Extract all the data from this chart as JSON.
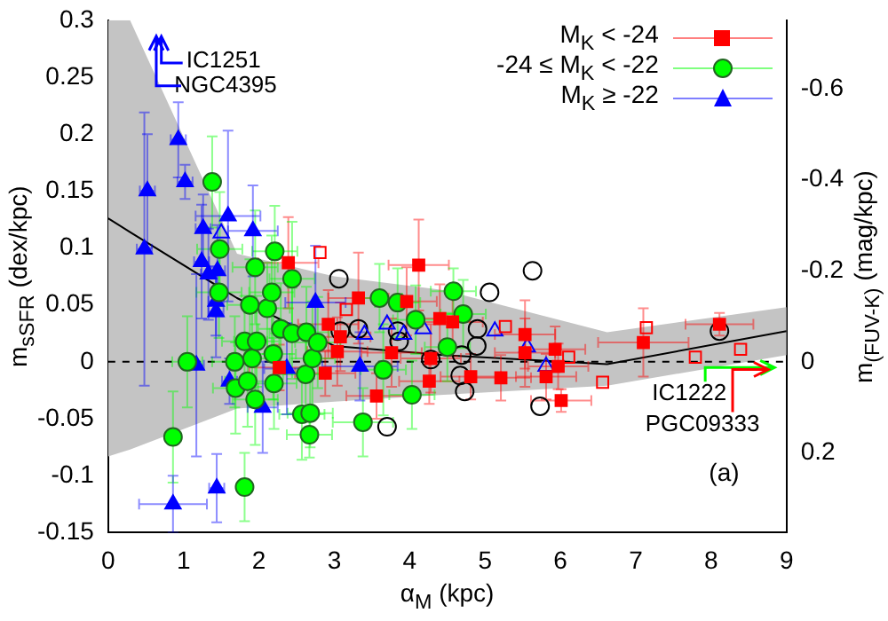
{
  "chart_data": {
    "type": "scatter",
    "xlabel": "α$_{M}$ (kpc)",
    "ylabel": "m$_{sSFR}$ (dex/kpc)",
    "y2label": "m$_{(FUV-K)}$ (mag/kpc)",
    "xlim": [
      0,
      9
    ],
    "xticks": [
      0,
      1,
      2,
      3,
      4,
      5,
      6,
      7,
      8,
      9
    ],
    "ylim": [
      -0.15,
      0.3
    ],
    "yticks": [
      -0.15,
      -0.1,
      -0.05,
      0,
      0.05,
      0.1,
      0.15,
      0.2,
      0.25,
      0.3
    ],
    "y2lim": [
      0.375,
      -0.75
    ],
    "y2ticks": [
      -0.6,
      -0.4,
      -0.2,
      0,
      0.2
    ],
    "grid": false,
    "legend": "top right",
    "ref_lines": [
      {
        "axis": "y",
        "value": 0,
        "line_style": "dashed",
        "color": "#000000"
      }
    ],
    "annotations": [
      "IC1251",
      "NGC4395",
      {
        "text": "IC1222",
        "x": 8.84,
        "y": -0.005
      },
      "PGC09333",
      "(a)"
    ],
    "series": [
      {
        "name": "M$_{K}$ < -24",
        "color": "#ff0000",
        "marker": "square",
        "x": [
          2.27,
          2.39,
          2.88,
          2.92,
          3.04,
          3.08,
          3.32,
          3.56,
          3.76,
          3.96,
          4.12,
          4.26,
          4.28,
          4.4,
          4.57,
          4.81,
          5.21,
          5.53,
          5.53,
          5.81,
          5.93,
          5.97,
          6.01,
          7.1,
          8.11
        ],
        "values": [
          -0.005,
          0.087,
          -0.01,
          0.033,
          0.009,
          0.022,
          0.056,
          -0.03,
          0.008,
          0.053,
          0.085,
          -0.017,
          0.003,
          0.038,
          0.035,
          -0.013,
          -0.014,
          0.024,
          0.008,
          -0.013,
          0.011,
          -0.004,
          -0.034,
          0.017,
          0.033
        ],
        "errors": [
          0.02,
          0.04,
          0.02,
          0.03,
          0.03,
          0.03,
          0.04,
          0.02,
          0.03,
          0.03,
          0.04,
          0.02,
          0.03,
          0.03,
          0.03,
          0.02,
          0.02,
          0.03,
          0.03,
          0.02,
          0.02,
          0.02,
          0.01,
          0.03,
          0.01
        ],
        "xerrors": [
          0.4,
          0.4,
          0.4,
          0.4,
          0.4,
          0.4,
          0.4,
          0.4,
          0.4,
          0.4,
          0.4,
          0.4,
          0.4,
          0.4,
          0.4,
          0.4,
          0.4,
          0.4,
          0.4,
          0.4,
          0.4,
          0.4,
          0.4,
          0.6,
          0.45
        ]
      },
      {
        "name": "-24 ≤ M$_{K}$ < -22",
        "color": "#00ff00",
        "marker": "circle",
        "x": [
          0.86,
          1.05,
          1.38,
          1.47,
          1.48,
          1.68,
          1.69,
          1.81,
          1.81,
          1.85,
          1.88,
          1.91,
          1.95,
          1.95,
          1.97,
          2.11,
          2.17,
          2.19,
          2.2,
          2.21,
          2.29,
          2.44,
          2.44,
          2.57,
          2.62,
          2.63,
          2.67,
          2.68,
          2.71,
          2.78,
          3.38,
          3.6,
          3.65,
          3.84,
          4.03,
          4.08,
          4.5,
          4.58,
          4.71
        ],
        "values": [
          -0.066,
          0.0,
          0.158,
          0.061,
          0.099,
          0.0,
          -0.023,
          0.018,
          -0.11,
          -0.017,
          0.05,
          0.003,
          0.083,
          -0.033,
          0.018,
          0.047,
          0.061,
          0.007,
          -0.019,
          0.097,
          0.029,
          0.073,
          0.025,
          -0.046,
          -0.011,
          0.026,
          -0.064,
          -0.045,
          0.003,
          0.017,
          -0.053,
          0.056,
          -0.007,
          0.052,
          -0.029,
          0.037,
          0.013,
          0.062,
          0.042
        ],
        "errors": [
          0.04,
          0.04,
          0.04,
          0.04,
          0.05,
          0.04,
          0.04,
          0.04,
          0.03,
          0.04,
          0.04,
          0.04,
          0.05,
          0.04,
          0.04,
          0.04,
          0.05,
          0.04,
          0.04,
          0.04,
          0.04,
          0.05,
          0.04,
          0.04,
          0.04,
          0.04,
          0.02,
          0.03,
          0.05,
          0.04,
          0.03,
          0.03,
          0.04,
          0.03,
          0.03,
          0.03,
          0.03,
          0.02,
          0.03
        ],
        "xerrors": [
          0.1,
          0.2,
          0.1,
          0.3,
          0.3,
          0.3,
          0.3,
          0.3,
          0.1,
          0.3,
          0.3,
          0.3,
          0.3,
          0.3,
          0.3,
          0.3,
          0.3,
          0.3,
          0.3,
          0.3,
          0.3,
          0.3,
          0.3,
          0.3,
          0.3,
          0.3,
          0.3,
          0.3,
          0.3,
          0.3,
          0.4,
          0.3,
          0.3,
          0.3,
          0.3,
          0.3,
          0.3,
          0.3,
          0.3
        ]
      },
      {
        "name": "M$_{K}$ ≥ -22",
        "color": "#0000ff",
        "marker": "triangle",
        "x": [
          0.48,
          0.52,
          0.86,
          0.93,
          1.02,
          1.17,
          1.24,
          1.26,
          1.33,
          1.43,
          1.43,
          1.44,
          1.45,
          1.59,
          1.61,
          1.92,
          2.05,
          2.37,
          2.75,
          3.34
        ],
        "values": [
          0.099,
          0.15,
          -0.125,
          0.195,
          0.158,
          -0.003,
          0.088,
          0.117,
          0.077,
          0.053,
          0.044,
          -0.111,
          0.08,
          0.128,
          -0.017,
          0.115,
          -0.04,
          -0.006,
          0.052,
          -0.004
        ],
        "errors": [
          0.12,
          0.05,
          0.025,
          0.033,
          0.015,
          0.08,
          0.05,
          0.03,
          0.04,
          0.03,
          0.04,
          0.03,
          0.04,
          0.075,
          0.02,
          0.04,
          0.04,
          0.04,
          0.05,
          0.03
        ],
        "xerrors": [
          0.1,
          0.1,
          0.45,
          0.1,
          0.1,
          0.1,
          0.1,
          0.1,
          0.1,
          0.1,
          0.1,
          0.1,
          0.1,
          0.43,
          0.1,
          0.33,
          0.2,
          0.3,
          0.4,
          0.5
        ]
      },
      {
        "color": "#ff0000",
        "marker": "square",
        "x": [
          2.81,
          3.16,
          5.27,
          6.11,
          6.56,
          7.14,
          7.79,
          8.39
        ],
        "values": [
          0.096,
          0.046,
          0.031,
          0.004,
          -0.018,
          0.03,
          0.004,
          0.011
        ]
      },
      {
        "color": "#0000ff",
        "marker": "triangle",
        "x": [
          1.5,
          3.4,
          3.7,
          3.92,
          4.18,
          5.13,
          5.56,
          5.81
        ],
        "values": [
          0.113,
          0.024,
          0.033,
          0.024,
          0.029,
          0.027,
          0.013,
          -0.004
        ]
      },
      {
        "color": "#000000",
        "marker": "circle",
        "x": [
          3.06,
          3.08,
          3.32,
          3.7,
          3.84,
          3.86,
          4.28,
          4.67,
          4.69,
          4.73,
          4.89,
          4.9,
          5.06,
          5.63,
          5.73,
          8.11
        ],
        "values": [
          0.073,
          0.027,
          0.029,
          -0.057,
          0.027,
          0.018,
          0.002,
          -0.012,
          0.006,
          -0.026,
          0.014,
          0.029,
          0.061,
          0.08,
          -0.039,
          0.027
        ]
      },
      {
        "color": "#000000",
        "type": "line",
        "x": [
          0,
          0.29,
          1.71,
          3,
          4.45,
          6.62,
          9
        ],
        "values": [
          0.126,
          0.114,
          0.056,
          0.014,
          0.006,
          -0.002,
          0.027
        ],
        "lower": [
          -0.083,
          -0.077,
          -0.041,
          -0.035,
          -0.029,
          -0.021,
          0.006
        ],
        "upper": [
          0.3,
          0.3,
          0.095,
          0.075,
          0.063,
          0.026,
          0.048
        ]
      }
    ]
  }
}
